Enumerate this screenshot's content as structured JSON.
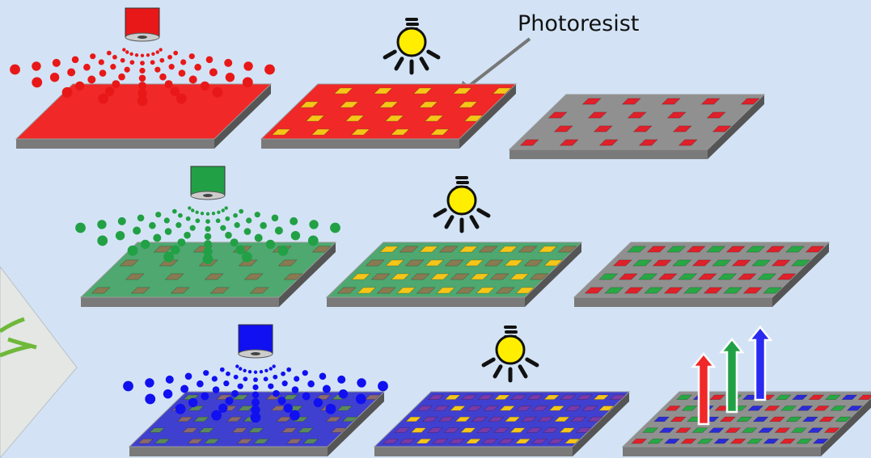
{
  "label": "Photoresist"
}
